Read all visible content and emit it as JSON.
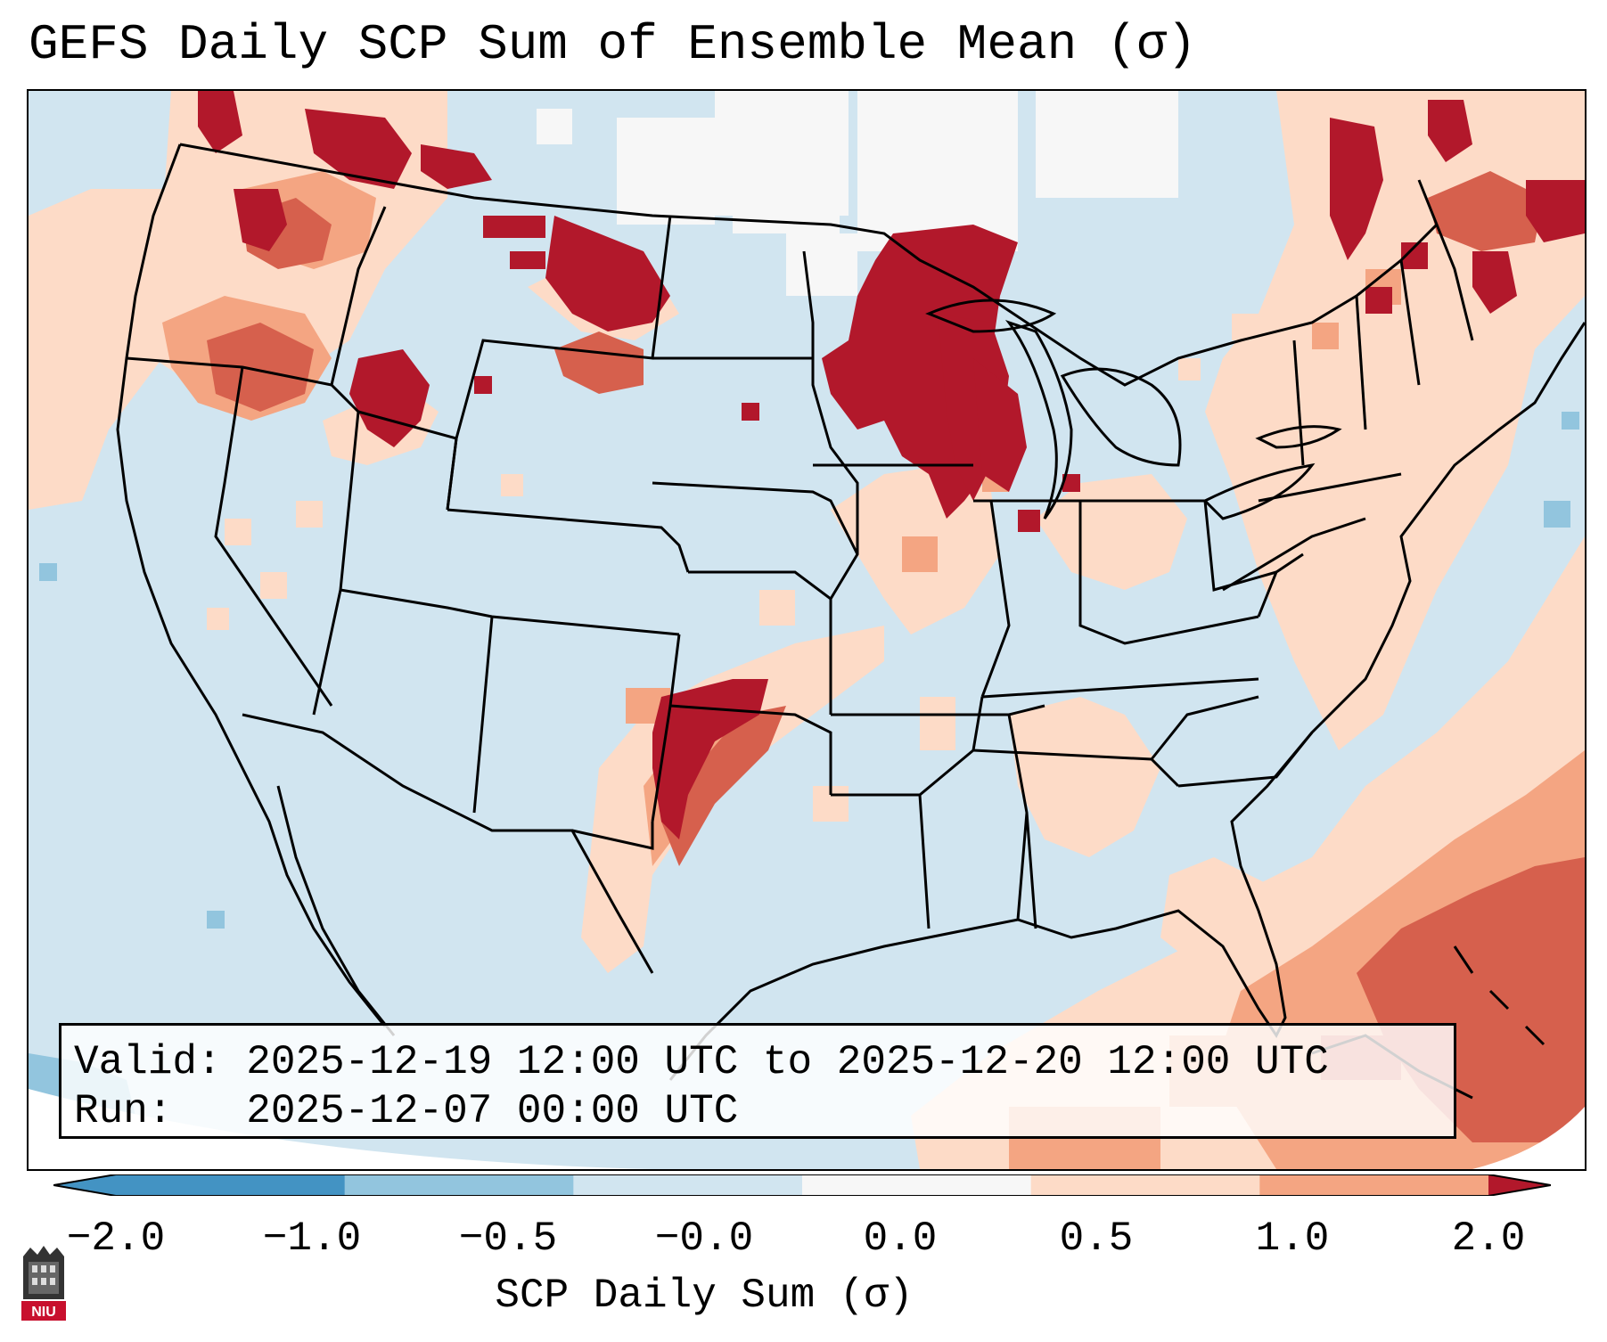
{
  "title": "GEFS Daily SCP Sum of Ensemble Mean (σ)",
  "info": {
    "valid_line": "Valid: 2025-12-19 12:00 UTC to 2025-12-20 12:00 UTC",
    "run_line": "Run:   2025-12-07 00:00 UTC"
  },
  "colorbar": {
    "label": "SCP Daily Sum (σ)",
    "ticks": [
      "−2.0",
      "−1.0",
      "−0.5",
      "−0.0",
      "0.0",
      "0.5",
      "1.0",
      "2.0"
    ],
    "colors": [
      "#4393c3",
      "#92c5de",
      "#d1e5f0",
      "#f7f7f7",
      "#fddbc7",
      "#f4a582",
      "#d6604d",
      "#b2182b"
    ],
    "extend": "both"
  },
  "logo": {
    "text": "NIU"
  },
  "regions": [
    {
      "name": "pacific-northwest",
      "level": "1.0 to 2.0"
    },
    {
      "name": "northern-rockies",
      "level": "1.0 to 2.0"
    },
    {
      "name": "upper-midwest",
      "level": "1.0 to 2.0"
    },
    {
      "name": "southern-plains-line",
      "level": "1.0 to 2.0"
    },
    {
      "name": "northeast",
      "level": "1.0 to 2.0"
    },
    {
      "name": "western-atlantic",
      "level": "0.5 to 1.0"
    },
    {
      "name": "gulf-of-mexico",
      "level": "0.0 to 0.5"
    },
    {
      "name": "northern-plains",
      "level": "-0.0 to 0.0"
    }
  ]
}
